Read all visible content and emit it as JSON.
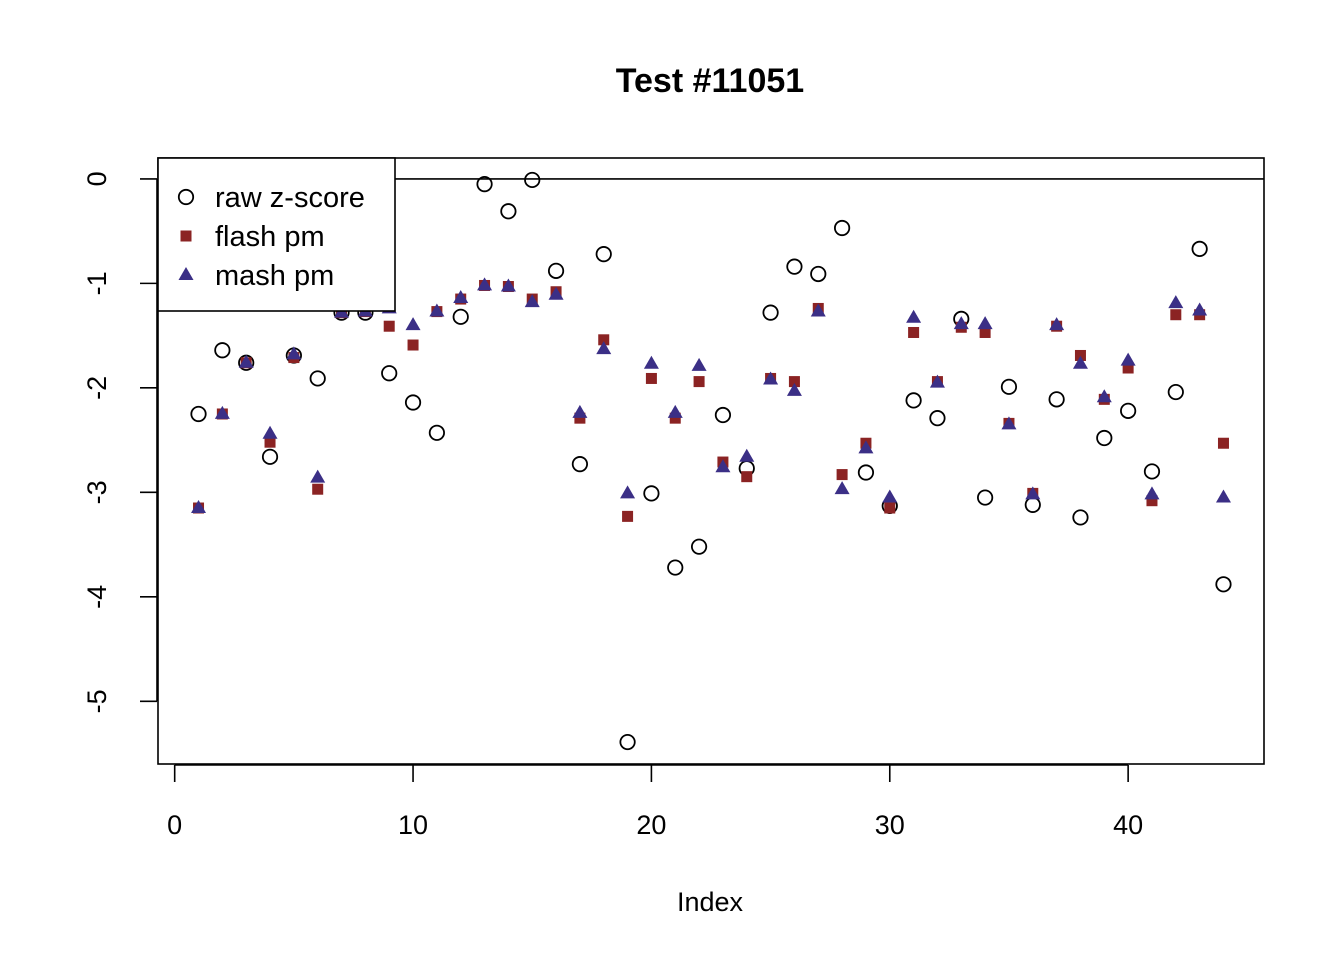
{
  "chart_data": {
    "type": "scatter",
    "title": "Test #11051",
    "xlabel": "Index",
    "ylabel": "",
    "xlim": [
      -0.7,
      45.7
    ],
    "ylim": [
      -5.6,
      0.2
    ],
    "x_ticks": [
      0,
      10,
      20,
      30,
      40
    ],
    "y_ticks": [
      0,
      -1,
      -2,
      -3,
      -4,
      -5
    ],
    "grid": false,
    "reference_line": 0,
    "legend_position": "top-left",
    "colors": {
      "raw": "#000000",
      "flash": "#8B2323",
      "mash": "#3B2F86"
    },
    "x": [
      1,
      2,
      3,
      4,
      5,
      6,
      7,
      8,
      9,
      10,
      11,
      12,
      13,
      14,
      15,
      16,
      17,
      18,
      19,
      20,
      21,
      22,
      23,
      24,
      25,
      26,
      27,
      28,
      29,
      30,
      31,
      32,
      33,
      34,
      35,
      36,
      37,
      38,
      39,
      40,
      41,
      42,
      43,
      44
    ],
    "series": [
      {
        "name": "raw z-score",
        "marker": "circle-open",
        "values": [
          -2.25,
          -1.64,
          -1.76,
          -2.66,
          -1.69,
          -1.91,
          -1.28,
          -1.28,
          -1.86,
          -2.14,
          -2.43,
          -1.32,
          -0.05,
          -0.31,
          -0.01,
          -0.88,
          -2.73,
          -0.72,
          -5.39,
          -3.01,
          -3.72,
          -3.52,
          -2.26,
          -2.77,
          -1.28,
          -0.84,
          -0.91,
          -0.47,
          -2.81,
          -3.13,
          -2.12,
          -2.29,
          -1.34,
          -3.05,
          -1.99,
          -3.12,
          -2.11,
          -3.24,
          -2.48,
          -2.22,
          -2.8,
          -2.04,
          -0.67,
          -3.88
        ]
      },
      {
        "name": "flash pm",
        "marker": "square-filled",
        "values": [
          -3.15,
          -2.25,
          -1.76,
          -2.52,
          -1.71,
          -2.97,
          -1.28,
          -1.27,
          -1.41,
          -1.59,
          -1.27,
          -1.15,
          -1.02,
          -1.03,
          -1.15,
          -1.08,
          -2.29,
          -1.54,
          -3.23,
          -1.91,
          -2.29,
          -1.94,
          -2.71,
          -2.85,
          -1.91,
          -1.94,
          -1.24,
          -2.83,
          -2.53,
          -3.15,
          -1.47,
          -1.94,
          -1.42,
          -1.47,
          -2.34,
          -3.01,
          -1.41,
          -1.69,
          -2.11,
          -1.81,
          -3.08,
          -1.3,
          -1.3,
          -2.53
        ]
      },
      {
        "name": "mash pm",
        "marker": "triangle-filled",
        "values": [
          -3.15,
          -2.25,
          -1.76,
          -2.44,
          -1.68,
          -2.86,
          -1.28,
          -1.27,
          -1.24,
          -1.4,
          -1.27,
          -1.14,
          -1.02,
          -1.03,
          -1.18,
          -1.11,
          -2.24,
          -1.63,
          -3.01,
          -1.77,
          -2.24,
          -1.79,
          -2.76,
          -2.66,
          -1.92,
          -2.03,
          -1.27,
          -2.97,
          -2.58,
          -3.05,
          -1.33,
          -1.95,
          -1.39,
          -1.39,
          -2.35,
          -3.02,
          -1.4,
          -1.77,
          -2.09,
          -1.74,
          -3.02,
          -1.19,
          -1.26,
          -3.05
        ]
      }
    ]
  }
}
